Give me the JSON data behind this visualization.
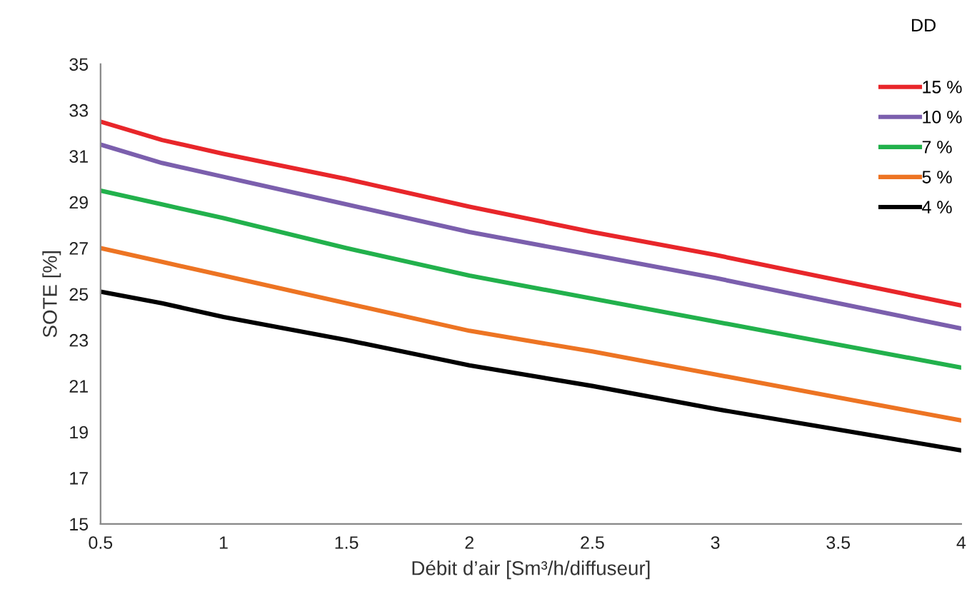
{
  "chart_data": {
    "type": "line",
    "xlabel": "Débit d’air [Sm³/h/diffuseur]",
    "ylabel": "SOTE [%]",
    "legend_title": "DD",
    "x": [
      0.5,
      0.75,
      1,
      1.5,
      2,
      2.5,
      3,
      3.5,
      4
    ],
    "series": [
      {
        "name": "15 %",
        "color": "#e8262a",
        "values": [
          32.5,
          31.7,
          31.1,
          30.0,
          28.8,
          27.7,
          26.7,
          25.6,
          24.5
        ]
      },
      {
        "name": "10 %",
        "color": "#7b5fad",
        "values": [
          31.5,
          30.7,
          30.1,
          28.9,
          27.7,
          26.7,
          25.7,
          24.6,
          23.5
        ]
      },
      {
        "name": "7 %",
        "color": "#22b14c",
        "values": [
          29.5,
          28.9,
          28.3,
          27.0,
          25.8,
          24.8,
          23.8,
          22.8,
          21.8
        ]
      },
      {
        "name": "5 %",
        "color": "#ed7423",
        "values": [
          27.0,
          26.4,
          25.8,
          24.6,
          23.4,
          22.5,
          21.5,
          20.5,
          19.5
        ]
      },
      {
        "name": "4 %",
        "color": "#000000",
        "values": [
          25.1,
          24.6,
          24.0,
          23.0,
          21.9,
          21.0,
          20.0,
          19.1,
          18.2
        ]
      }
    ],
    "xlim": [
      0.5,
      4
    ],
    "ylim": [
      15,
      35
    ],
    "xticks": [
      0.5,
      1,
      1.5,
      2,
      2.5,
      3,
      3.5,
      4
    ],
    "yticks": [
      15,
      17,
      19,
      21,
      23,
      25,
      27,
      29,
      31,
      33,
      35
    ],
    "grid": false,
    "legend": "top right",
    "marker": "none",
    "line_style": "solid"
  }
}
